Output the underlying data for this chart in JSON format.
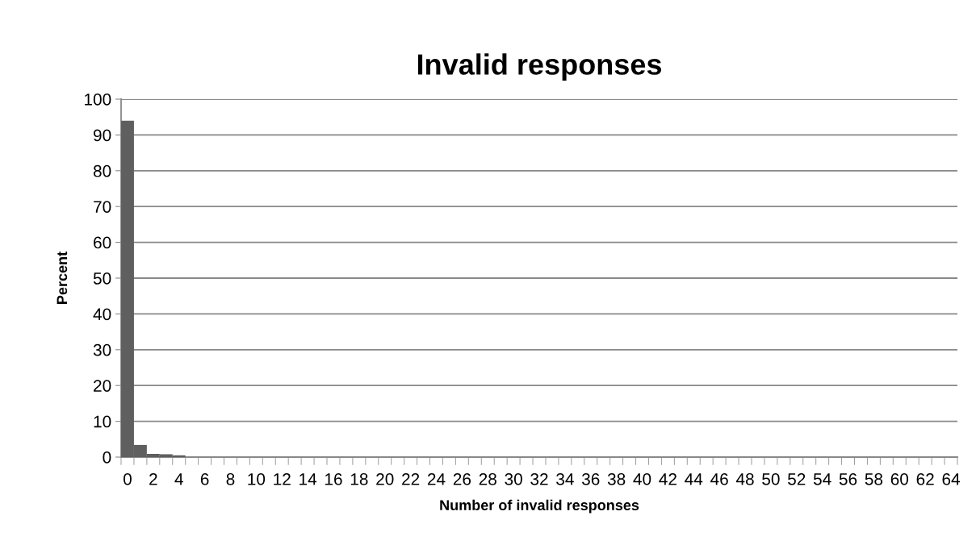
{
  "chart_data": {
    "type": "bar",
    "title": "Invalid responses",
    "xlabel": "Number of invalid responses",
    "ylabel": "Percent",
    "categories": [
      "0",
      null,
      "2",
      null,
      "4",
      null,
      "6",
      null,
      "8",
      null,
      "10",
      null,
      "12",
      null,
      "14",
      null,
      "16",
      null,
      "18",
      null,
      "20",
      null,
      "22",
      null,
      "24",
      null,
      "26",
      null,
      "28",
      null,
      "30",
      null,
      "32",
      null,
      "34",
      null,
      "36",
      null,
      "38",
      null,
      "40",
      null,
      "42",
      null,
      "44",
      null,
      "46",
      null,
      "48",
      null,
      "50",
      null,
      "52",
      null,
      "54",
      null,
      "56",
      null,
      "58",
      null,
      "60",
      null,
      "62",
      null,
      "64"
    ],
    "values": [
      94,
      3.4,
      0.9,
      0.8,
      0.5,
      0,
      0,
      0,
      0,
      0,
      0,
      0,
      0,
      0,
      0,
      0,
      0,
      0,
      0,
      0,
      0,
      0,
      0,
      0,
      0,
      0,
      0,
      0,
      0,
      0,
      0,
      0,
      0,
      0,
      0,
      0,
      0,
      0,
      0,
      0,
      0,
      0,
      0,
      0,
      0,
      0,
      0,
      0,
      0,
      0,
      0,
      0,
      0,
      0,
      0,
      0,
      0,
      0,
      0,
      0,
      0,
      0,
      0,
      0,
      0
    ],
    "color": "#5f5f5f",
    "ylim": [
      0,
      100
    ],
    "yticks": [
      0,
      10,
      20,
      30,
      40,
      50,
      60,
      70,
      80,
      90,
      100
    ],
    "grid": "y"
  }
}
